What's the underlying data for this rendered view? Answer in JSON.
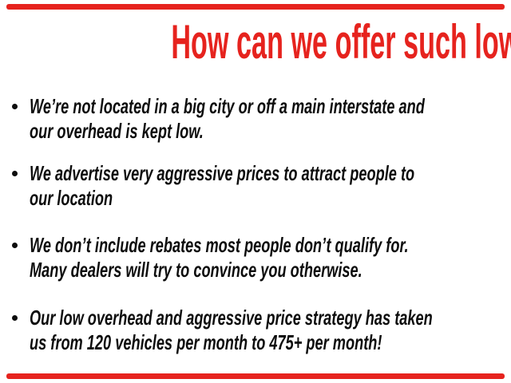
{
  "colors": {
    "accent_red": "#e6231e",
    "text_black": "#0d0d0d",
    "background": "#ffffff"
  },
  "slide": {
    "title": "How can we offer such low prices?",
    "bullets": [
      {
        "lines": [
          "We’re not located in a big city or off a main interstate and",
          "our overhead is kept low."
        ]
      },
      {
        "lines": [
          "We advertise very aggressive prices to attract people to",
          "our location"
        ]
      },
      {
        "lines": [
          "We don’t include rebates most people don’t qualify for.",
          "Many dealers will try to convince you otherwise."
        ]
      },
      {
        "lines": [
          "Our low overhead and aggressive price strategy has taken",
          "us from 120 vehicles per month to 475+ per month!"
        ]
      }
    ]
  }
}
